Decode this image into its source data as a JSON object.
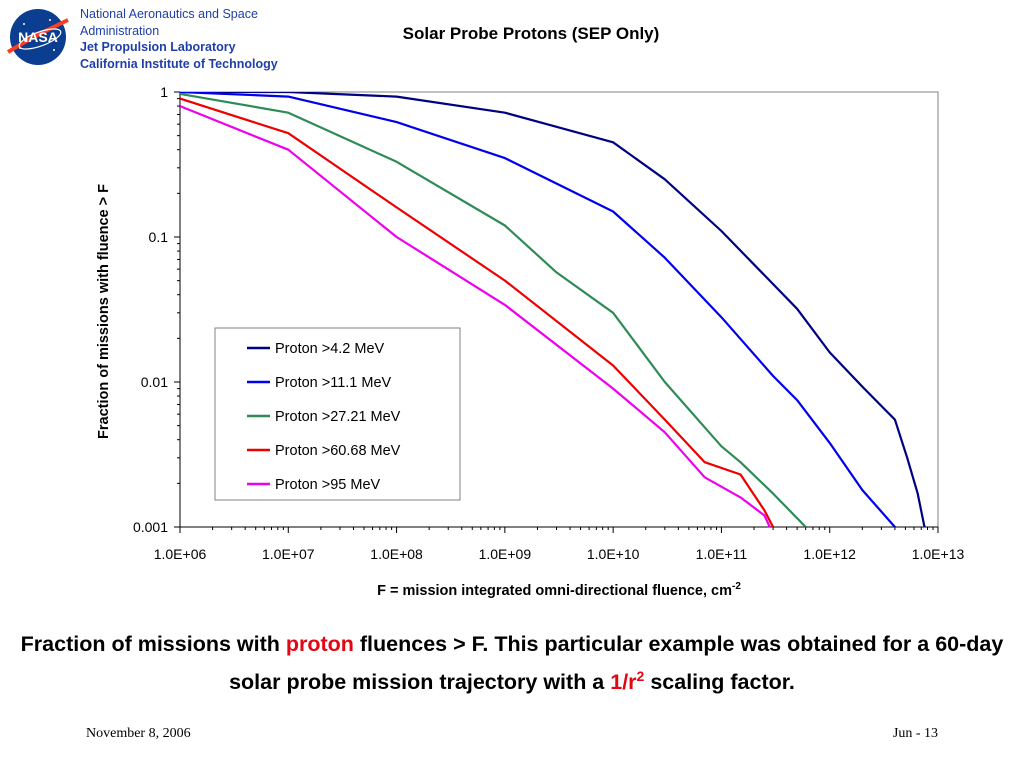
{
  "header": {
    "org_line1": "National Aeronautics and Space",
    "org_line2": "Administration",
    "org_line3": "Jet Propulsion Laboratory",
    "org_line4": "California Institute of Technology",
    "logo_text": "NASA"
  },
  "chart_data": {
    "type": "line",
    "title": "Solar Probe Protons (SEP Only)",
    "xlabel": "F = mission integrated omni-directional fluence, cm",
    "xlabel_sup": "-2",
    "ylabel": "Fraction of missions with fluence > F",
    "x_scale": "log",
    "y_scale": "log",
    "xlim": [
      1000000,
      10000000000000
    ],
    "ylim": [
      0.001,
      1
    ],
    "x_ticks": [
      "1.0E+06",
      "1.0E+07",
      "1.0E+08",
      "1.0E+09",
      "1.0E+10",
      "1.0E+11",
      "1.0E+12",
      "1.0E+13"
    ],
    "y_ticks": [
      "1",
      "0.1",
      "0.01",
      "0.001"
    ],
    "grid": false,
    "legend_position": "lower-left inside",
    "series": [
      {
        "name": "Proton >4.2 MeV",
        "color": "#000080",
        "points": [
          [
            1000000,
            1.0
          ],
          [
            10000000,
            1.0
          ],
          [
            100000000,
            0.93
          ],
          [
            1000000000,
            0.72
          ],
          [
            10000000000,
            0.45
          ],
          [
            30000000000,
            0.25
          ],
          [
            100000000000,
            0.11
          ],
          [
            500000000000,
            0.032
          ],
          [
            1000000000000,
            0.016
          ],
          [
            2000000000000,
            0.0093
          ],
          [
            4000000000000,
            0.0055
          ],
          [
            5200000000000,
            0.003
          ],
          [
            6500000000000,
            0.0017
          ],
          [
            7500000000000,
            0.001
          ]
        ]
      },
      {
        "name": "Proton >11.1 MeV",
        "color": "#0000ee",
        "points": [
          [
            1000000,
            1.0
          ],
          [
            10000000,
            0.93
          ],
          [
            100000000,
            0.62
          ],
          [
            1000000000,
            0.35
          ],
          [
            10000000000,
            0.15
          ],
          [
            30000000000,
            0.072
          ],
          [
            100000000000,
            0.028
          ],
          [
            300000000000,
            0.011
          ],
          [
            500000000000,
            0.0075
          ],
          [
            1000000000000,
            0.0038
          ],
          [
            2000000000000,
            0.0018
          ],
          [
            4000000000000,
            0.001
          ]
        ]
      },
      {
        "name": "Proton >27.21 MeV",
        "color": "#2e8b57",
        "points": [
          [
            1000000,
            0.97
          ],
          [
            10000000,
            0.72
          ],
          [
            100000000,
            0.33
          ],
          [
            1000000000,
            0.12
          ],
          [
            3000000000,
            0.057
          ],
          [
            10000000000,
            0.03
          ],
          [
            30000000000,
            0.01
          ],
          [
            100000000000,
            0.0036
          ],
          [
            150000000000,
            0.0028
          ],
          [
            300000000000,
            0.0017
          ],
          [
            600000000000,
            0.001
          ]
        ]
      },
      {
        "name": "Proton >60.68 MeV",
        "color": "#ee0000",
        "points": [
          [
            1000000,
            0.9
          ],
          [
            10000000,
            0.52
          ],
          [
            100000000,
            0.16
          ],
          [
            1000000000,
            0.05
          ],
          [
            10000000000,
            0.013
          ],
          [
            30000000000,
            0.0055
          ],
          [
            70000000000,
            0.0028
          ],
          [
            150000000000,
            0.0023
          ],
          [
            250000000000,
            0.0013
          ],
          [
            300000000000,
            0.001
          ]
        ]
      },
      {
        "name": "Proton >95 MeV",
        "color": "#ee00ee",
        "points": [
          [
            1000000,
            0.8
          ],
          [
            10000000,
            0.4
          ],
          [
            100000000,
            0.1
          ],
          [
            1000000000,
            0.034
          ],
          [
            10000000000,
            0.009
          ],
          [
            30000000000,
            0.0045
          ],
          [
            70000000000,
            0.0022
          ],
          [
            150000000000,
            0.0016
          ],
          [
            250000000000,
            0.0012
          ],
          [
            280000000000,
            0.001
          ]
        ]
      }
    ]
  },
  "caption": {
    "part1": "Fraction of missions with ",
    "highlight1": "proton",
    "part2": " fluences > F. This particular example was obtained for a 60-day solar probe mission trajectory with a ",
    "highlight2": "1/r",
    "highlight2_sup": "2",
    "part3": " scaling factor."
  },
  "footer": {
    "date": "November 8, 2006",
    "page": "Jun - 13"
  }
}
